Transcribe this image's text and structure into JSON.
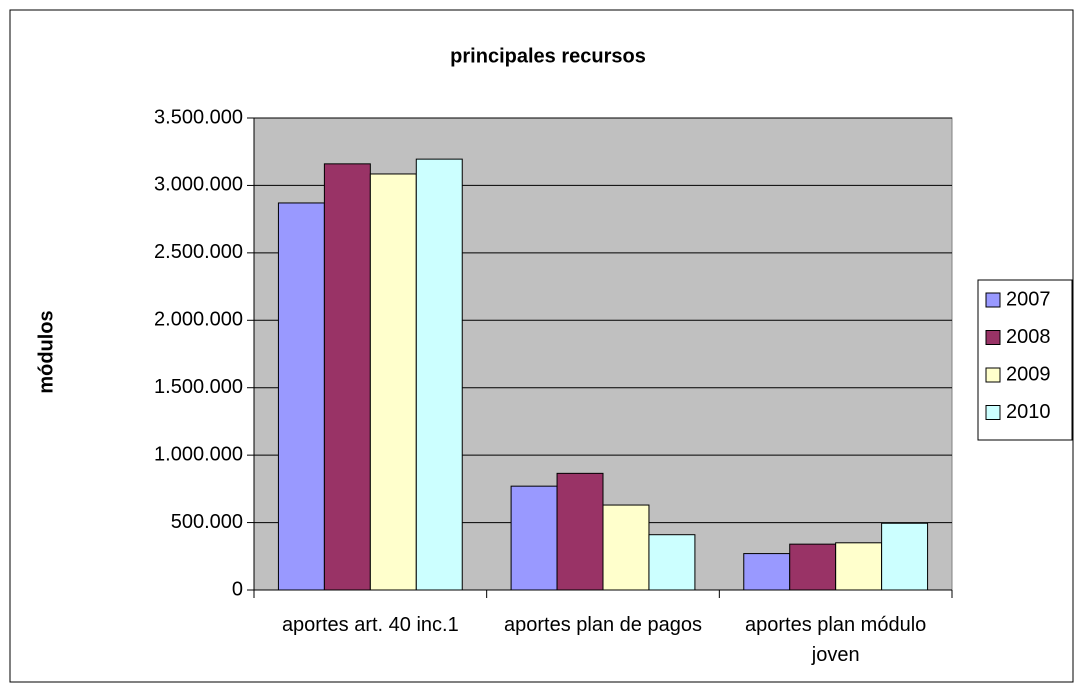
{
  "chart_data": {
    "type": "bar",
    "title": "principales recursos",
    "ylabel": "módulos",
    "categories": [
      "aportes art. 40 inc.1",
      "aportes plan de pagos",
      "aportes plan módulo joven"
    ],
    "series": [
      {
        "name": "2007",
        "color": "#9999FF",
        "values": [
          2870000,
          770000,
          270000
        ]
      },
      {
        "name": "2008",
        "color": "#993366",
        "values": [
          3160000,
          865000,
          340000
        ]
      },
      {
        "name": "2009",
        "color": "#FFFFCC",
        "values": [
          3085000,
          630000,
          350000
        ]
      },
      {
        "name": "2010",
        "color": "#CCFFFF",
        "values": [
          3195000,
          410000,
          495000
        ]
      }
    ],
    "ylim": [
      0,
      3500000
    ],
    "yticks": [
      0,
      {
        "value": 500000,
        "label": "500.000"
      },
      {
        "value": 1000000,
        "label": "1.000.000"
      },
      {
        "value": 1500000,
        "label": "1.500.000"
      },
      {
        "value": 2000000,
        "label": "2.000.000"
      },
      {
        "value": 2500000,
        "label": "2.500.000"
      },
      {
        "value": 3000000,
        "label": "3.000.000"
      },
      {
        "value": 3500000,
        "label": "3.500.000"
      }
    ],
    "grid": true,
    "legend": "right",
    "plot_background": "#C0C0C0"
  }
}
